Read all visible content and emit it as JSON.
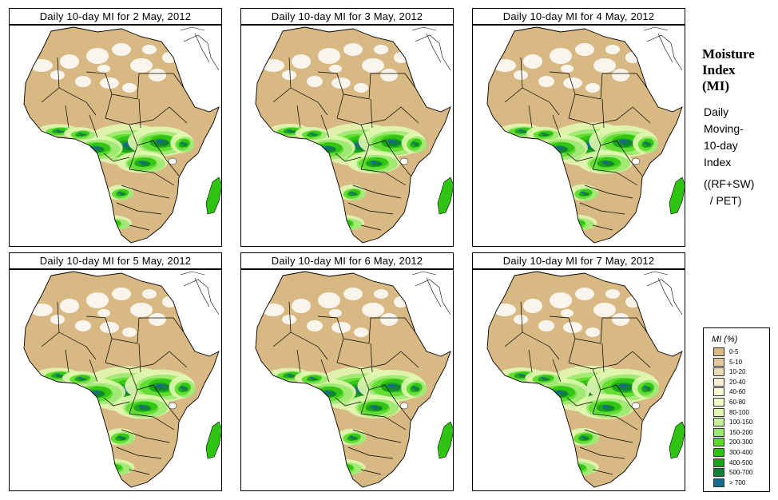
{
  "panels": [
    {
      "title": "Daily 10-day MI for  2 May, 2012",
      "wetness": 0
    },
    {
      "title": "Daily 10-day MI for  3 May, 2012",
      "wetness": 1
    },
    {
      "title": "Daily 10-day MI for  4 May, 2012",
      "wetness": 2
    },
    {
      "title": "Daily 10-day MI for  5 May, 2012",
      "wetness": 3
    },
    {
      "title": "Daily 10-day MI for  6 May, 2012",
      "wetness": 2
    },
    {
      "title": "Daily 10-day MI for  7 May, 2012",
      "wetness": 4
    }
  ],
  "side": {
    "title_lines": [
      "Moisture",
      "Index",
      "(MI)"
    ],
    "desc_lines": [
      "Daily",
      "Moving-",
      "10-day",
      "Index"
    ],
    "formula_lines": [
      "((RF+SW)",
      "  / PET)"
    ]
  },
  "legend": {
    "title": "MI (%)",
    "items": [
      {
        "label": "0-5",
        "color": "#d8b883"
      },
      {
        "label": "5-10",
        "color": "#e2c89c"
      },
      {
        "label": "10-20",
        "color": "#ecd9b6"
      },
      {
        "label": "20-40",
        "color": "#f6ecd3"
      },
      {
        "label": "40-60",
        "color": "#fafad2"
      },
      {
        "label": "60-80",
        "color": "#f1fbc1"
      },
      {
        "label": "80-100",
        "color": "#e1f7b0"
      },
      {
        "label": "100-150",
        "color": "#c8f09a"
      },
      {
        "label": "150-200",
        "color": "#9be86f"
      },
      {
        "label": "200-300",
        "color": "#5cdb2c"
      },
      {
        "label": "300-400",
        "color": "#2fc312"
      },
      {
        "label": "400-500",
        "color": "#18a21c"
      },
      {
        "label": "500-700",
        "color": "#11803a"
      },
      {
        "label": "> 700",
        "color": "#186a8f"
      }
    ]
  },
  "map_colors": {
    "land": "#d8b883",
    "desert_white": "#ffffff",
    "border": "#000000"
  }
}
